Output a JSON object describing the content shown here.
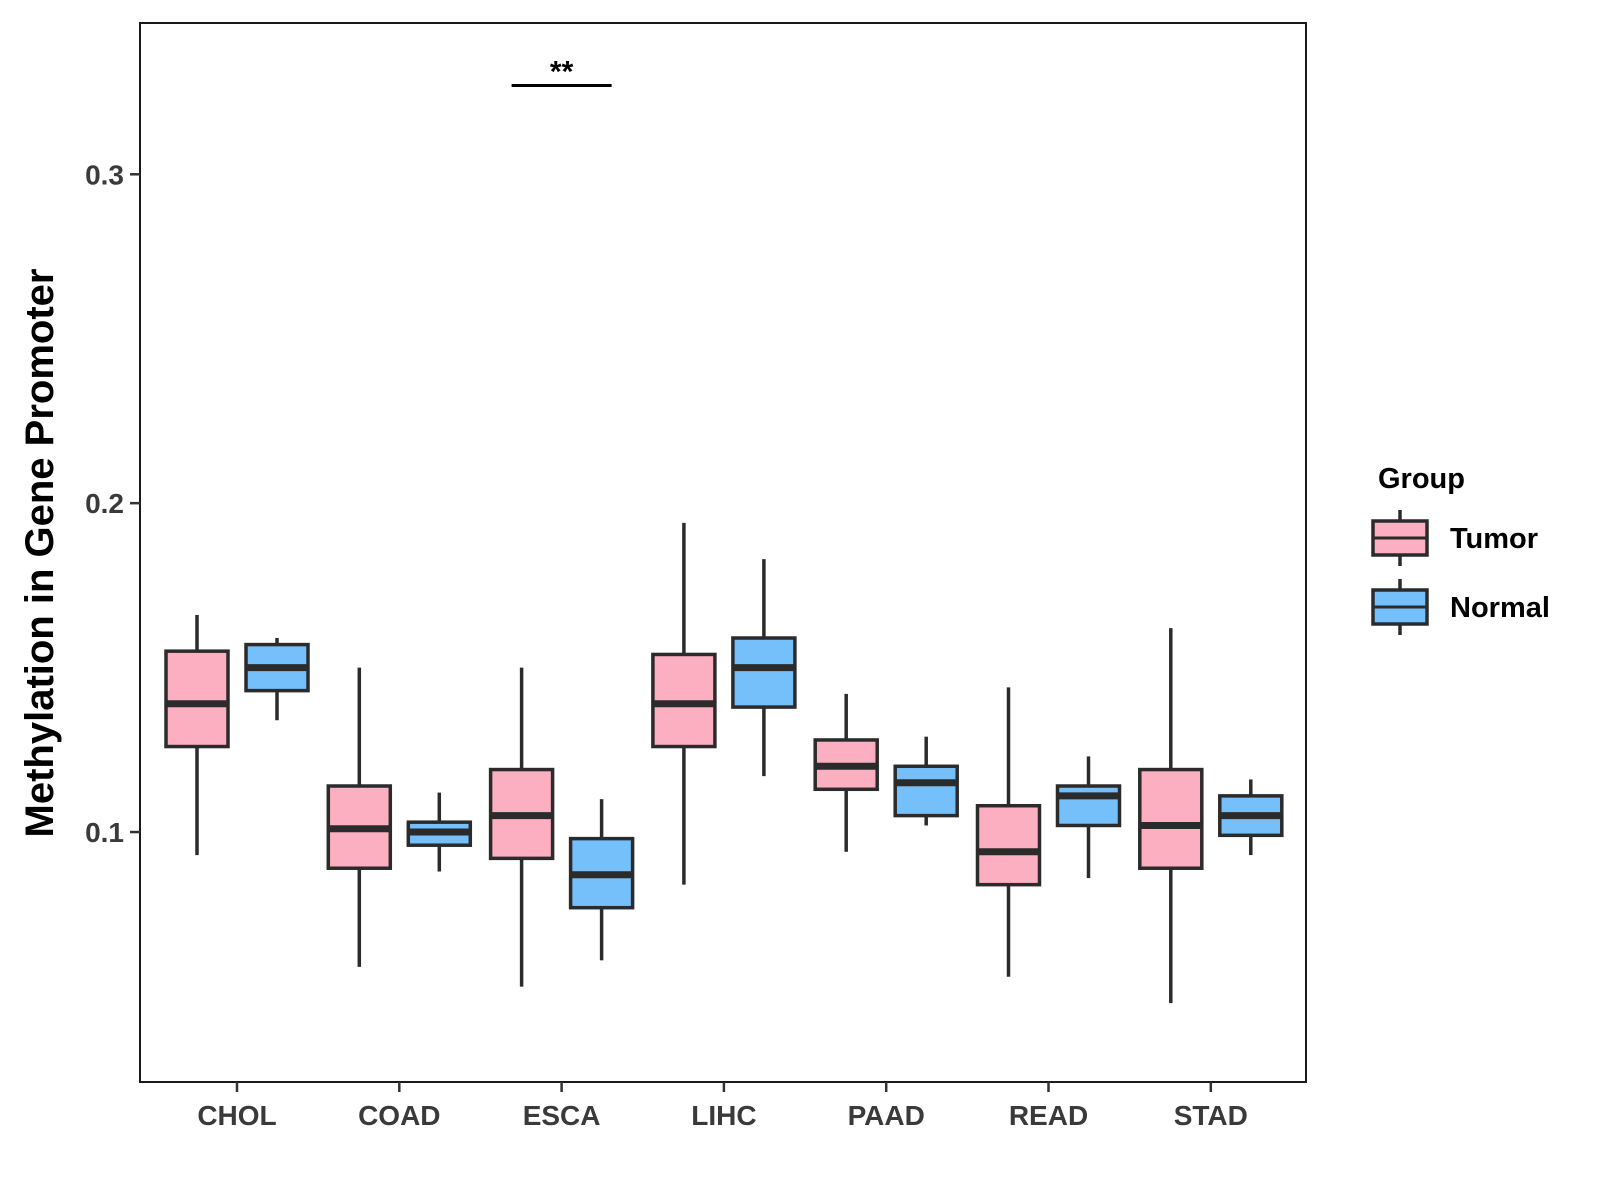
{
  "chart_data": {
    "type": "box",
    "title": "",
    "xlabel": "",
    "ylabel": "Methylation in Gene Promoter",
    "ylim": [
      0.024,
      0.346
    ],
    "yticks": [
      0.1,
      0.2,
      0.3
    ],
    "ytick_labels": [
      "0.1",
      "0.2",
      "0.3"
    ],
    "categories": [
      "CHOL",
      "COAD",
      "ESCA",
      "LIHC",
      "PAAD",
      "READ",
      "STAD"
    ],
    "grid": false,
    "legend": {
      "title": "Group",
      "position": "right",
      "entries": [
        {
          "name": "Tumor",
          "color": "#FBAFC0"
        },
        {
          "name": "Normal",
          "color": "#75BFFA"
        }
      ]
    },
    "series": [
      {
        "name": "Tumor",
        "color": "#FBAFC0",
        "boxes": [
          {
            "category": "CHOL",
            "whisker_low": 0.093,
            "q1": 0.126,
            "median": 0.139,
            "q3": 0.155,
            "whisker_high": 0.166
          },
          {
            "category": "COAD",
            "whisker_low": 0.059,
            "q1": 0.089,
            "median": 0.101,
            "q3": 0.114,
            "whisker_high": 0.15
          },
          {
            "category": "ESCA",
            "whisker_low": 0.053,
            "q1": 0.092,
            "median": 0.105,
            "q3": 0.119,
            "whisker_high": 0.15
          },
          {
            "category": "LIHC",
            "whisker_low": 0.084,
            "q1": 0.126,
            "median": 0.139,
            "q3": 0.154,
            "whisker_high": 0.194
          },
          {
            "category": "PAAD",
            "whisker_low": 0.094,
            "q1": 0.113,
            "median": 0.12,
            "q3": 0.128,
            "whisker_high": 0.142
          },
          {
            "category": "READ",
            "whisker_low": 0.056,
            "q1": 0.084,
            "median": 0.094,
            "q3": 0.108,
            "whisker_high": 0.144
          },
          {
            "category": "STAD",
            "whisker_low": 0.048,
            "q1": 0.089,
            "median": 0.102,
            "q3": 0.119,
            "whisker_high": 0.162
          }
        ]
      },
      {
        "name": "Normal",
        "color": "#75BFFA",
        "boxes": [
          {
            "category": "CHOL",
            "whisker_low": 0.134,
            "q1": 0.143,
            "median": 0.15,
            "q3": 0.157,
            "whisker_high": 0.159
          },
          {
            "category": "COAD",
            "whisker_low": 0.088,
            "q1": 0.096,
            "median": 0.1,
            "q3": 0.103,
            "whisker_high": 0.112
          },
          {
            "category": "ESCA",
            "whisker_low": 0.061,
            "q1": 0.077,
            "median": 0.087,
            "q3": 0.098,
            "whisker_high": 0.11
          },
          {
            "category": "LIHC",
            "whisker_low": 0.117,
            "q1": 0.138,
            "median": 0.15,
            "q3": 0.159,
            "whisker_high": 0.183
          },
          {
            "category": "PAAD",
            "whisker_low": 0.102,
            "q1": 0.105,
            "median": 0.115,
            "q3": 0.12,
            "whisker_high": 0.129
          },
          {
            "category": "READ",
            "whisker_low": 0.086,
            "q1": 0.102,
            "median": 0.111,
            "q3": 0.114,
            "whisker_high": 0.123
          },
          {
            "category": "STAD",
            "whisker_low": 0.093,
            "q1": 0.099,
            "median": 0.105,
            "q3": 0.111,
            "whisker_high": 0.116
          }
        ]
      }
    ],
    "annotations": [
      {
        "category": "ESCA",
        "label": "**",
        "y": 0.327
      }
    ]
  }
}
